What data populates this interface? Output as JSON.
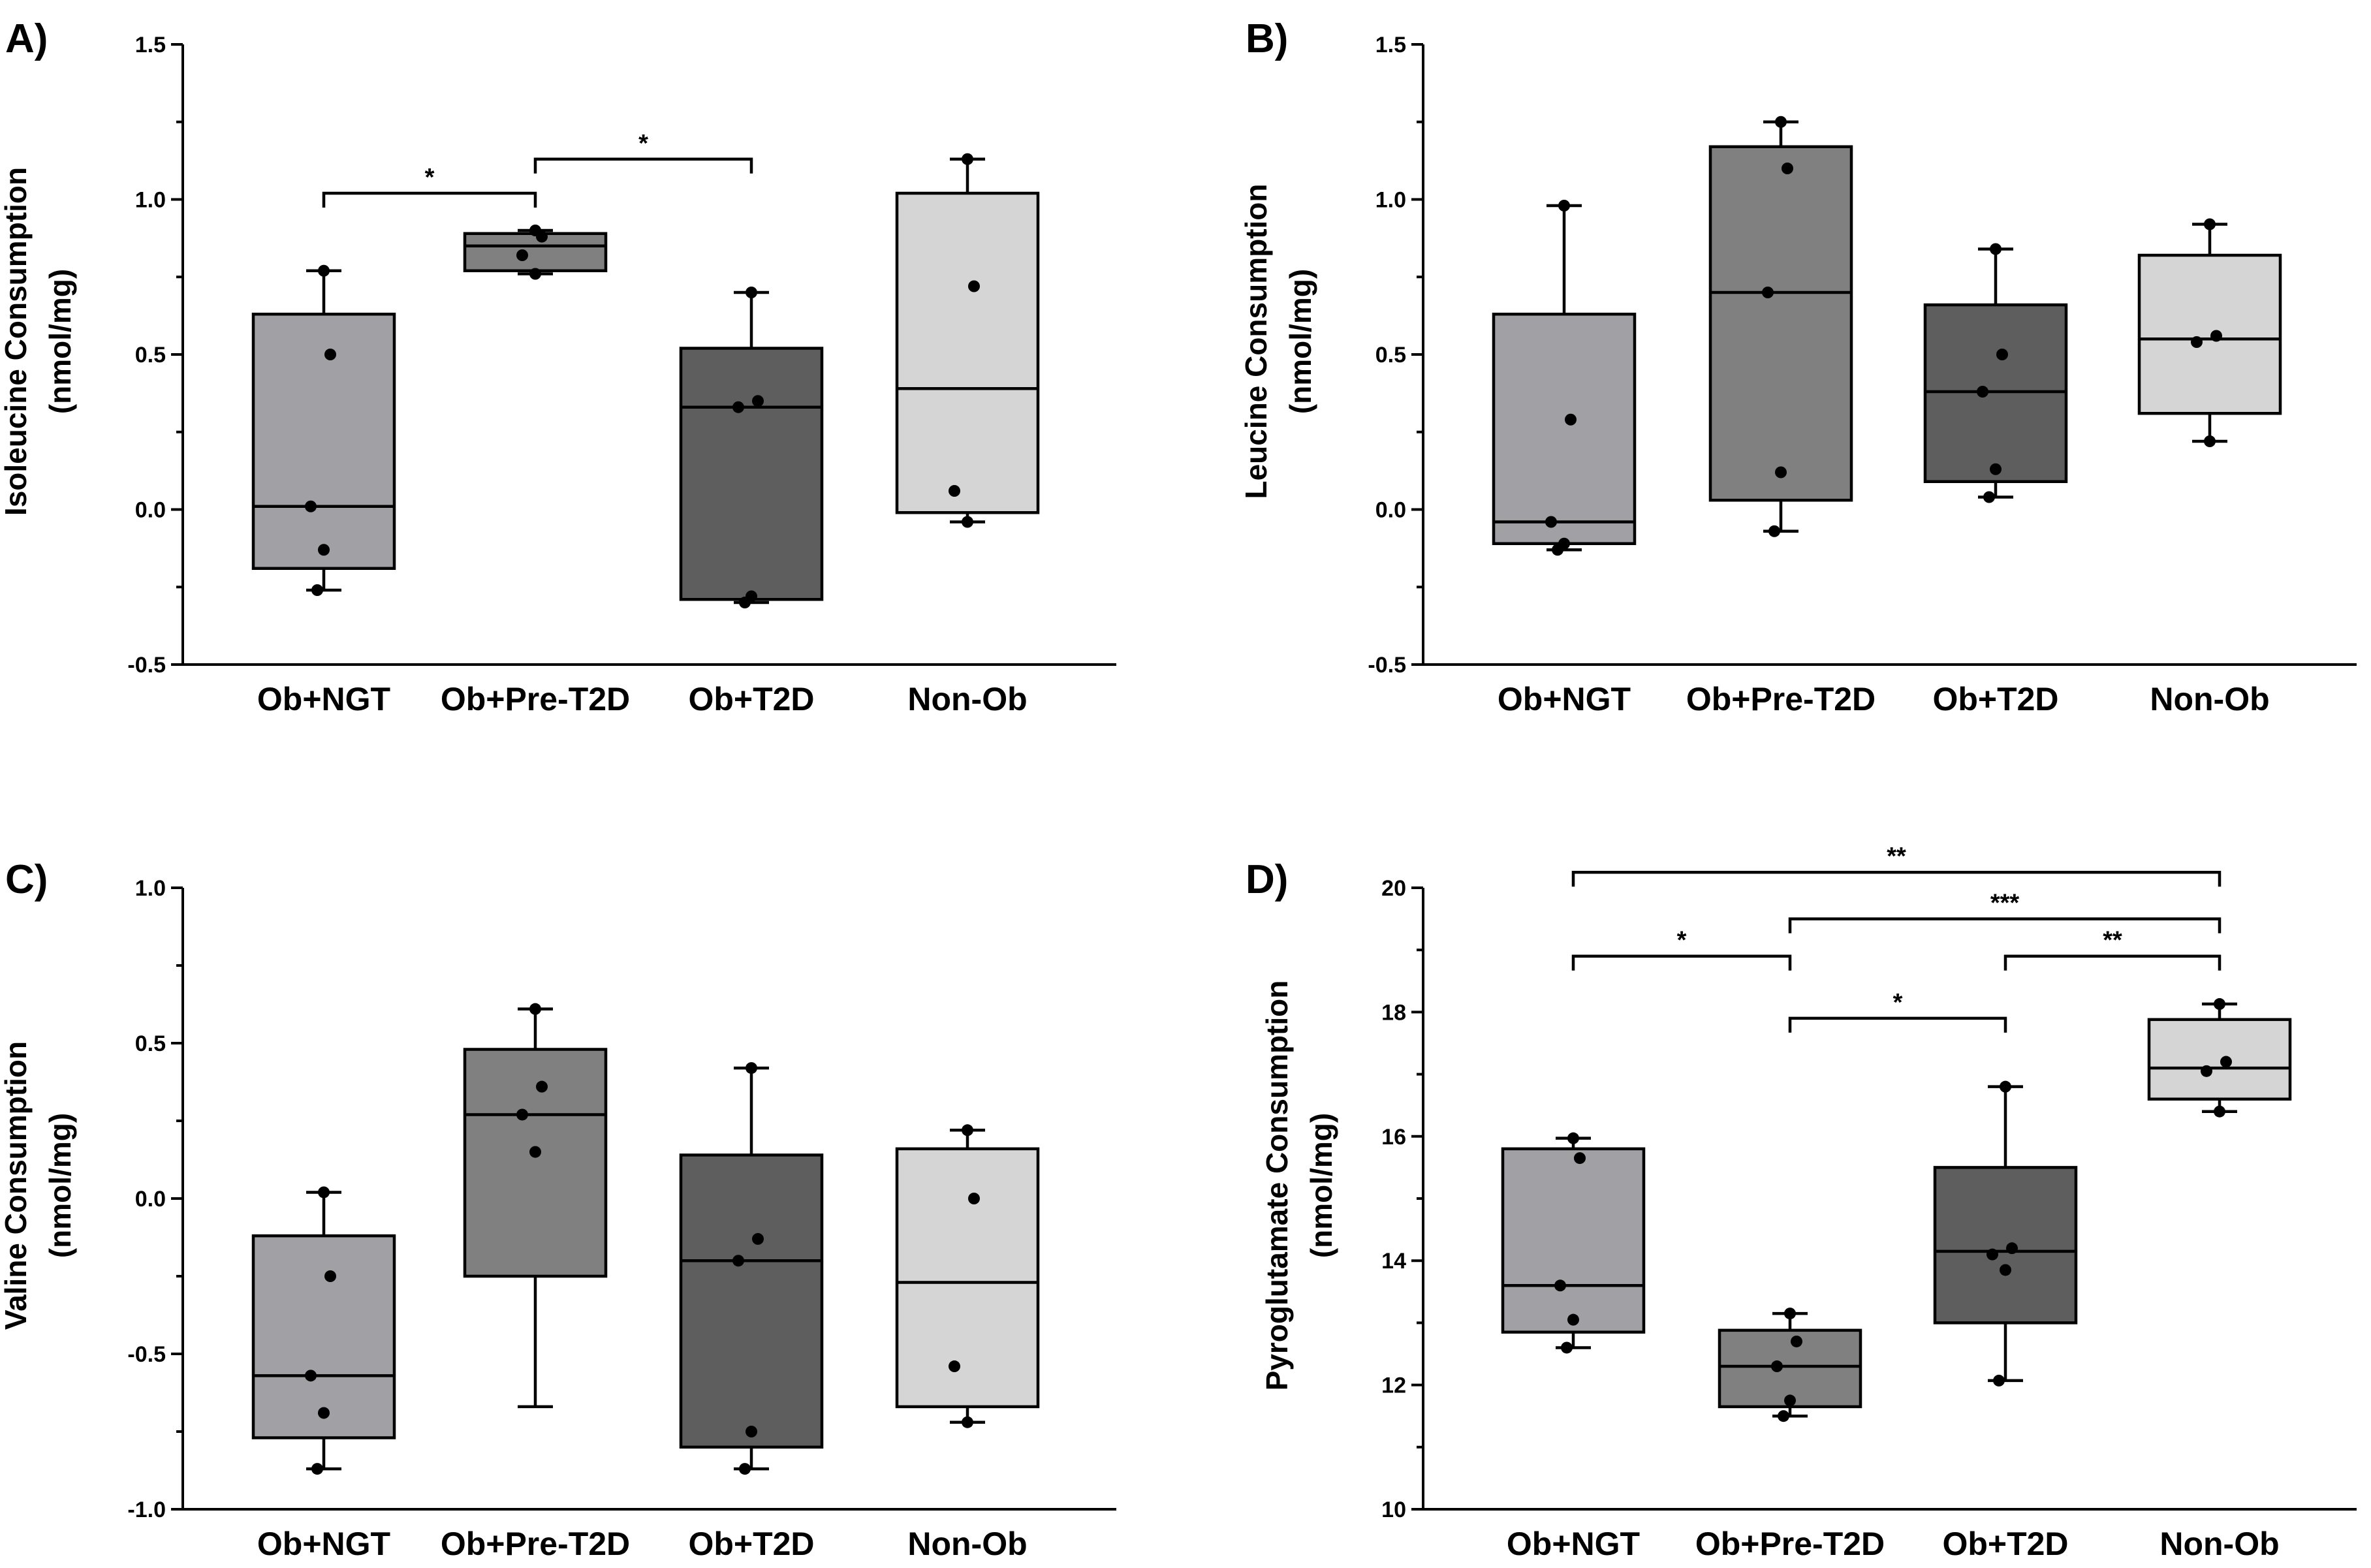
{
  "chart_data": [
    {
      "type": "box",
      "panel_label": "A)",
      "ylabel_lines": [
        "Isoleucine Consumption",
        "(nmol/mg)"
      ],
      "ylim": [
        -0.5,
        1.5
      ],
      "yticks": [
        -0.5,
        0.0,
        0.5,
        1.0,
        1.5
      ],
      "ytick_labels": [
        "-0.5",
        "0.0",
        "0.5",
        "1.0",
        "1.5"
      ],
      "categories": [
        "Ob+NGT",
        "Ob+Pre-T2D",
        "Ob+T2D",
        "Non-Ob"
      ],
      "colors": [
        "#a0a0a5",
        "#808080",
        "#5e5e5e",
        "#d5d5d5"
      ],
      "boxes": [
        {
          "min": -0.26,
          "q1": -0.19,
          "median": 0.01,
          "q3": 0.63,
          "max": 0.77,
          "points": [
            0.77,
            0.5,
            0.01,
            -0.13,
            -0.26
          ]
        },
        {
          "min": 0.76,
          "q1": 0.77,
          "median": 0.85,
          "q3": 0.89,
          "max": 0.9,
          "points": [
            0.9,
            0.88,
            0.82,
            0.76
          ]
        },
        {
          "min": -0.3,
          "q1": -0.29,
          "median": 0.33,
          "q3": 0.52,
          "max": 0.7,
          "points": [
            0.7,
            0.35,
            0.33,
            -0.28,
            -0.3
          ]
        },
        {
          "min": -0.04,
          "q1": -0.01,
          "median": 0.39,
          "q3": 1.02,
          "max": 1.13,
          "points": [
            1.13,
            0.72,
            0.06,
            -0.04
          ]
        }
      ],
      "significance": [
        {
          "from": 0,
          "to": 1,
          "label": "*",
          "y": 1.02
        },
        {
          "from": 1,
          "to": 2,
          "label": "*",
          "y": 1.13
        }
      ]
    },
    {
      "type": "box",
      "panel_label": "B)",
      "ylabel_lines": [
        "Leucine Consumption",
        "(nmol/mg)"
      ],
      "ylim": [
        -0.5,
        1.5
      ],
      "yticks": [
        -0.5,
        0.0,
        0.5,
        1.0,
        1.5
      ],
      "ytick_labels": [
        "-0.5",
        "0.0",
        "0.5",
        "1.0",
        "1.5"
      ],
      "categories": [
        "Ob+NGT",
        "Ob+Pre-T2D",
        "Ob+T2D",
        "Non-Ob"
      ],
      "colors": [
        "#a0a0a5",
        "#808080",
        "#5e5e5e",
        "#d5d5d5"
      ],
      "boxes": [
        {
          "min": -0.13,
          "q1": -0.11,
          "median": -0.04,
          "q3": 0.63,
          "max": 0.98,
          "points": [
            0.98,
            0.29,
            -0.04,
            -0.11,
            -0.13
          ]
        },
        {
          "min": -0.07,
          "q1": 0.03,
          "median": 0.7,
          "q3": 1.17,
          "max": 1.25,
          "points": [
            1.25,
            1.1,
            0.7,
            0.12,
            -0.07
          ]
        },
        {
          "min": 0.04,
          "q1": 0.09,
          "median": 0.38,
          "q3": 0.66,
          "max": 0.84,
          "points": [
            0.84,
            0.5,
            0.38,
            0.13,
            0.04
          ]
        },
        {
          "min": 0.22,
          "q1": 0.31,
          "median": 0.55,
          "q3": 0.82,
          "max": 0.92,
          "points": [
            0.92,
            0.56,
            0.54,
            0.22
          ]
        }
      ],
      "significance": []
    },
    {
      "type": "box",
      "panel_label": "C)",
      "ylabel_lines": [
        "Valine Consumption",
        "(nmol/mg)"
      ],
      "ylim": [
        -1.0,
        1.0
      ],
      "yticks": [
        -1.0,
        -0.5,
        0.0,
        0.5,
        1.0
      ],
      "ytick_labels": [
        "-1.0",
        "-0.5",
        "0.0",
        "0.5",
        "1.0"
      ],
      "categories": [
        "Ob+NGT",
        "Ob+Pre-T2D",
        "Ob+T2D",
        "Non-Ob"
      ],
      "colors": [
        "#a0a0a5",
        "#808080",
        "#5e5e5e",
        "#d5d5d5"
      ],
      "boxes": [
        {
          "min": -0.87,
          "q1": -0.77,
          "median": -0.57,
          "q3": -0.12,
          "max": 0.02,
          "points": [
            0.02,
            -0.25,
            -0.57,
            -0.69,
            -0.87
          ]
        },
        {
          "min": -0.67,
          "q1": -0.25,
          "median": 0.27,
          "q3": 0.48,
          "max": 0.61,
          "points": [
            0.61,
            0.36,
            0.27,
            0.15
          ]
        },
        {
          "min": -0.87,
          "q1": -0.8,
          "median": -0.2,
          "q3": 0.14,
          "max": 0.42,
          "points": [
            0.42,
            -0.13,
            -0.2,
            -0.75,
            -0.87
          ]
        },
        {
          "min": -0.72,
          "q1": -0.67,
          "median": -0.27,
          "q3": 0.16,
          "max": 0.22,
          "points": [
            0.22,
            0.0,
            -0.54,
            -0.72
          ]
        }
      ],
      "significance": []
    },
    {
      "type": "box",
      "panel_label": "D)",
      "ylabel_lines": [
        "Pyroglutamate Consumption",
        "(nmol/mg)"
      ],
      "ylim": [
        10,
        20
      ],
      "yticks": [
        10,
        12,
        14,
        16,
        18,
        20
      ],
      "ytick_labels": [
        "10",
        "12",
        "14",
        "16",
        "18",
        "20"
      ],
      "categories": [
        "Ob+NGT",
        "Ob+Pre-T2D",
        "Ob+T2D",
        "Non-Ob"
      ],
      "colors": [
        "#a0a0a5",
        "#808080",
        "#5e5e5e",
        "#d5d5d5"
      ],
      "boxes": [
        {
          "min": 12.6,
          "q1": 12.85,
          "median": 13.6,
          "q3": 15.8,
          "max": 15.97,
          "points": [
            15.97,
            15.65,
            13.6,
            13.05,
            12.6
          ]
        },
        {
          "min": 11.5,
          "q1": 11.65,
          "median": 12.3,
          "q3": 12.88,
          "max": 13.15,
          "points": [
            13.15,
            12.7,
            12.3,
            11.75,
            11.5
          ]
        },
        {
          "min": 12.07,
          "q1": 13.0,
          "median": 14.15,
          "q3": 15.5,
          "max": 16.8,
          "points": [
            16.8,
            14.2,
            14.1,
            13.85,
            12.07
          ]
        },
        {
          "min": 16.4,
          "q1": 16.6,
          "median": 17.1,
          "q3": 17.88,
          "max": 18.13,
          "points": [
            18.13,
            17.2,
            17.05,
            16.4
          ]
        }
      ],
      "significance": [
        {
          "from": 1,
          "to": 2,
          "label": "*",
          "y": 17.9
        },
        {
          "from": 0,
          "to": 1,
          "label": "*",
          "y": 18.9
        },
        {
          "from": 2,
          "to": 3,
          "label": "**",
          "y": 18.9
        },
        {
          "from": 1,
          "to": 3,
          "label": "***",
          "y": 19.5
        },
        {
          "from": 0,
          "to": 3,
          "label": "**",
          "y": 20.25
        }
      ]
    }
  ]
}
